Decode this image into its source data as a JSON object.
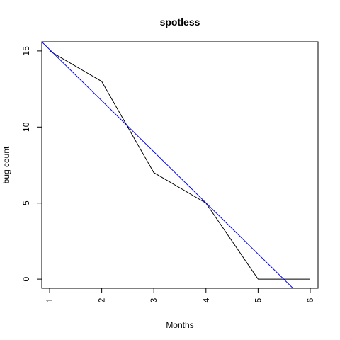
{
  "chart_data": {
    "type": "line",
    "title": "spotless",
    "xlabel": "Months",
    "ylabel": "bug count",
    "xlim": [
      0.85,
      6.15
    ],
    "ylim": [
      -0.6,
      15.6
    ],
    "x_ticks": [
      1,
      2,
      3,
      4,
      5,
      6
    ],
    "x_tick_labels": [
      "1",
      "2",
      "3",
      "4",
      "5",
      "6"
    ],
    "y_ticks": [
      0,
      5,
      10,
      15
    ],
    "y_tick_labels": [
      "0",
      "5",
      "10",
      "15"
    ],
    "grid": false,
    "series": [
      {
        "color": "#000000",
        "x": [
          1,
          2,
          3,
          4,
          5,
          6
        ],
        "y": [
          15,
          13,
          7,
          5,
          0,
          0
        ]
      },
      {
        "color": "#0000ff",
        "x": [
          0.85,
          5.67
        ],
        "y": [
          15.6,
          -0.6
        ]
      }
    ]
  }
}
